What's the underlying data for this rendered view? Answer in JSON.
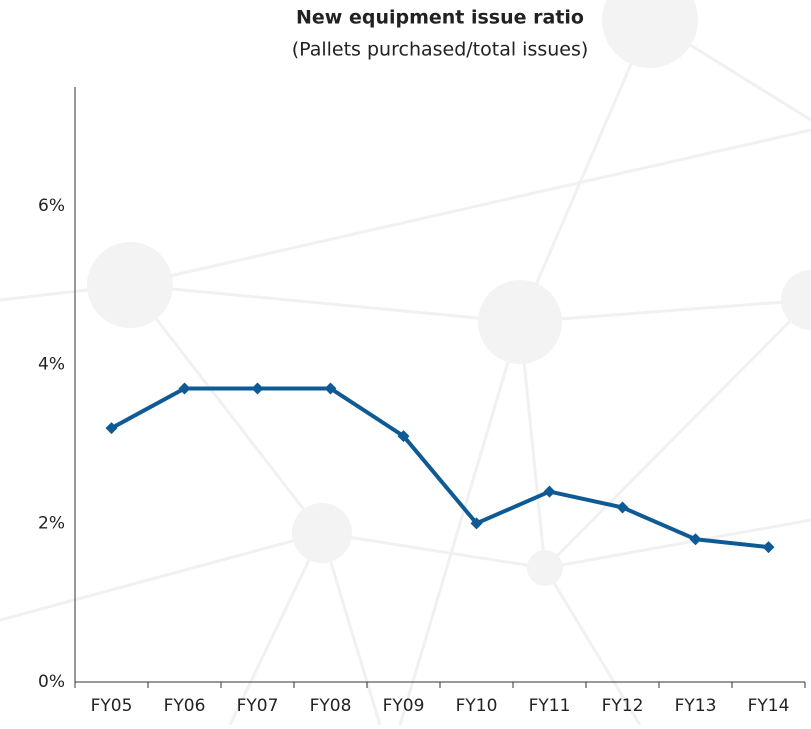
{
  "chart_data": {
    "type": "line",
    "title": "New equipment issue ratio",
    "subtitle": "(Pallets purchased/total issues)",
    "categories": [
      "FY05",
      "FY06",
      "FY07",
      "FY08",
      "FY09",
      "FY10",
      "FY11",
      "FY12",
      "FY13",
      "FY14"
    ],
    "values": [
      3.2,
      3.7,
      3.7,
      3.7,
      3.1,
      2.0,
      2.4,
      2.2,
      1.8,
      1.7
    ],
    "color": "#0e5a94",
    "ylim": [
      0,
      7.5
    ],
    "yticks": [
      {
        "value": 0,
        "label": "0%"
      },
      {
        "value": 2,
        "label": "2%"
      },
      {
        "value": 4,
        "label": "4%"
      },
      {
        "value": 6,
        "label": "6%"
      }
    ],
    "grid": false
  }
}
